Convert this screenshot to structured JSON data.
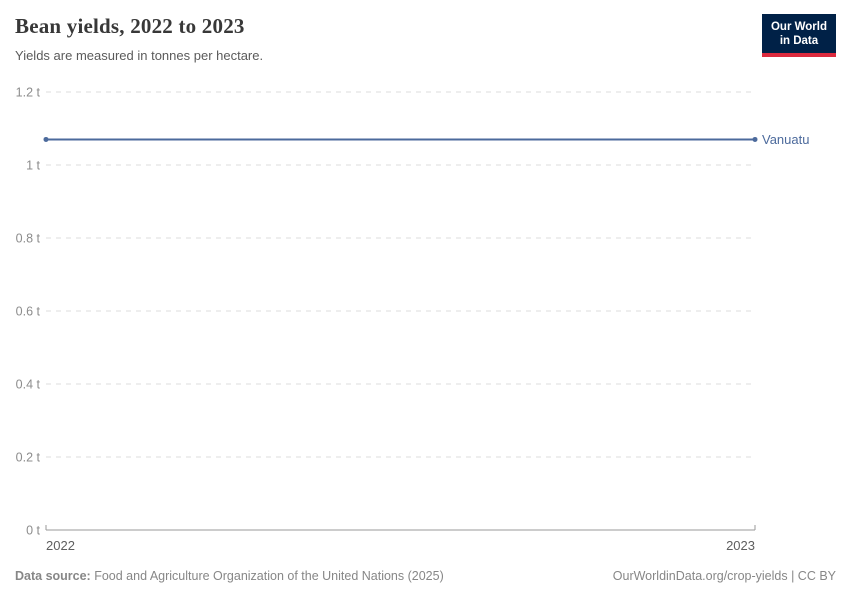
{
  "header": {
    "title": "Bean yields, 2022 to 2023",
    "subtitle": "Yields are measured in tonnes per hectare.",
    "logo": {
      "line1": "Our World",
      "line2": "in Data",
      "bg_color": "#002147",
      "accent_color": "#dc2a3e"
    }
  },
  "chart_data": {
    "type": "line",
    "title": "Bean yields, 2022 to 2023",
    "subtitle": "Yields are measured in tonnes per hectare.",
    "x": [
      2022,
      2023
    ],
    "series": [
      {
        "name": "Vanuatu",
        "values": [
          1.07,
          1.07
        ],
        "color": "#4C6A9C"
      }
    ],
    "xlabel": "",
    "ylabel": "",
    "ylim": [
      0,
      1.2
    ],
    "yticks": [
      {
        "v": 0,
        "label": "0 t"
      },
      {
        "v": 0.2,
        "label": "0.2 t"
      },
      {
        "v": 0.4,
        "label": "0.4 t"
      },
      {
        "v": 0.6,
        "label": "0.6 t"
      },
      {
        "v": 0.8,
        "label": "0.8 t"
      },
      {
        "v": 1,
        "label": "1 t"
      },
      {
        "v": 1.2,
        "label": "1.2 t"
      }
    ],
    "xticks": [
      {
        "v": 2022,
        "label": "2022"
      },
      {
        "v": 2023,
        "label": "2023"
      }
    ],
    "grid": "horizontal-dashed",
    "legend_position": "end-of-line"
  },
  "footer": {
    "source_label": "Data source:",
    "source_text": "Food and Agriculture Organization of the United Nations (2025)",
    "credits": "OurWorldinData.org/crop-yields | CC BY"
  }
}
